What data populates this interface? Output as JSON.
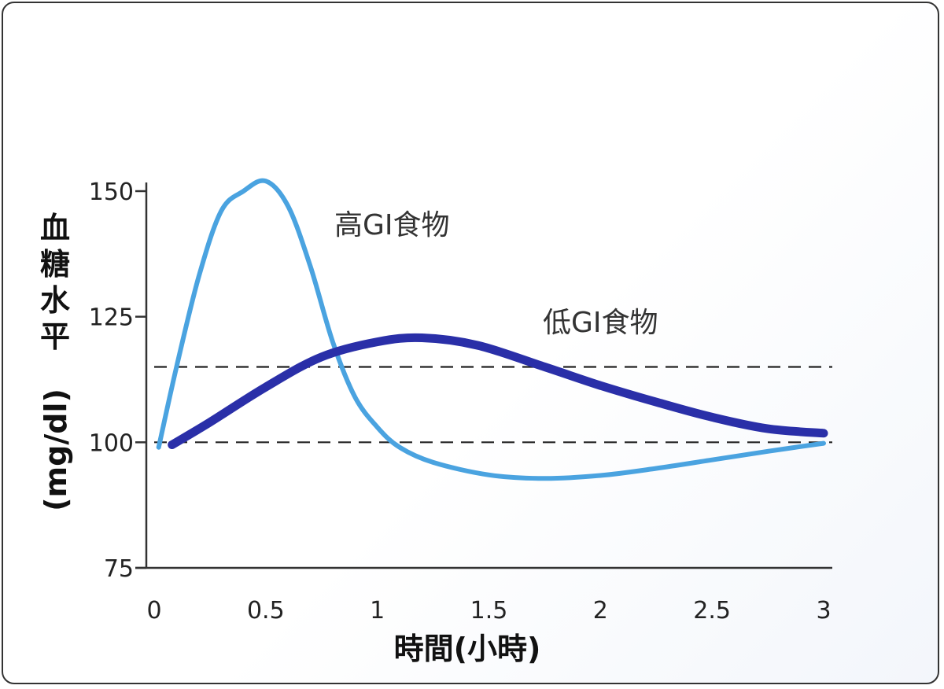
{
  "chart_data": {
    "type": "line",
    "xlabel": "時間(小時)",
    "ylabel_chars": [
      "血",
      "糖",
      "水",
      "平"
    ],
    "ylabel_unit": "(mg/dl)",
    "xlim": [
      0,
      3
    ],
    "ylim": [
      75,
      150
    ],
    "x_ticks": [
      "0",
      "0.5",
      "1",
      "1.5",
      "2",
      "2.5",
      "3"
    ],
    "y_ticks": [
      "75",
      "100",
      "125",
      "150"
    ],
    "reference_lines": [
      100,
      115
    ],
    "series": [
      {
        "name": "高GI食物",
        "color": "#4aa3e0",
        "x": [
          0.02,
          0.1,
          0.2,
          0.3,
          0.4,
          0.5,
          0.6,
          0.7,
          0.8,
          0.9,
          1.0,
          1.1,
          1.25,
          1.5,
          1.75,
          2.0,
          2.25,
          2.5,
          2.75,
          3.0
        ],
        "y": [
          99,
          115,
          133,
          146,
          150,
          152,
          147,
          135,
          120,
          109,
          103,
          99,
          96,
          93.5,
          92.8,
          93.4,
          94.8,
          96.5,
          98.2,
          99.8
        ]
      },
      {
        "name": "低GI食物",
        "color": "#2a2fa8",
        "x": [
          0.08,
          0.25,
          0.5,
          0.75,
          1.0,
          1.2,
          1.45,
          1.75,
          2.0,
          2.25,
          2.5,
          2.75,
          3.0
        ],
        "y": [
          99.5,
          104,
          111,
          117,
          120,
          120.8,
          119.3,
          115,
          111.3,
          108,
          105,
          102.7,
          101.8
        ]
      }
    ]
  }
}
